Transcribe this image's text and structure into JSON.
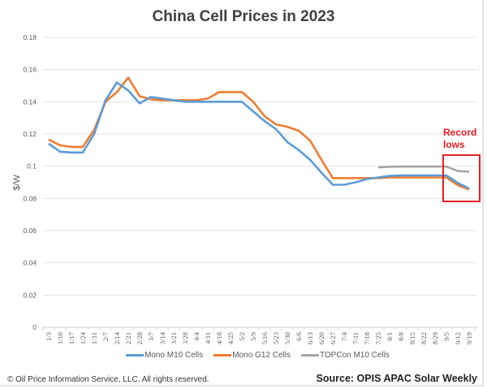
{
  "chart_data": {
    "type": "line",
    "title": "China Cell Prices in 2023",
    "xlabel": "",
    "ylabel": "$/W",
    "ylim": [
      0,
      0.18
    ],
    "yticks": [
      "0",
      "0.02",
      "0.04",
      "0.06",
      "0.08",
      "0.1",
      "0.12",
      "0.14",
      "0.16",
      "0.18"
    ],
    "ytick_values": [
      0,
      0.02,
      0.04,
      0.06,
      0.08,
      0.1,
      0.12,
      0.14,
      0.16,
      0.18
    ],
    "grid": true,
    "legend_position": "bottom",
    "categories": [
      "1/3",
      "1/10",
      "1/17",
      "1/24",
      "1/31",
      "2/7",
      "2/14",
      "2/21",
      "2/28",
      "3/7",
      "3/14",
      "3/21",
      "3/28",
      "4/4",
      "4/11",
      "4/18",
      "4/25",
      "5/2",
      "5/9",
      "5/16",
      "5/23",
      "5/30",
      "6/6",
      "6/13",
      "6/20",
      "6/27",
      "7/4",
      "7/11",
      "7/18",
      "7/25",
      "8/1",
      "8/8",
      "8/15",
      "8/22",
      "8/29",
      "9/5",
      "9/12",
      "9/19"
    ],
    "series": [
      {
        "name": "Mono M10 Cells",
        "color": "#5b9bd5",
        "values": [
          0.114,
          0.109,
          0.1085,
          0.1085,
          0.12,
          0.141,
          0.152,
          0.147,
          0.139,
          0.143,
          0.142,
          0.141,
          0.14,
          0.14,
          0.14,
          0.14,
          0.14,
          0.14,
          0.134,
          0.128,
          0.123,
          0.115,
          0.11,
          0.104,
          0.096,
          0.0885,
          0.0885,
          0.09,
          0.092,
          0.093,
          0.094,
          0.0943,
          0.0943,
          0.0943,
          0.0943,
          0.0943,
          0.0896,
          0.0862
        ]
      },
      {
        "name": "Mono G12 Cells",
        "color": "#ed7d31",
        "values": [
          0.1165,
          0.113,
          0.112,
          0.112,
          0.1225,
          0.14,
          0.146,
          0.155,
          0.1435,
          0.1415,
          0.141,
          0.141,
          0.141,
          0.141,
          0.142,
          0.146,
          0.146,
          0.146,
          0.14,
          0.131,
          0.126,
          0.1245,
          0.122,
          0.116,
          0.104,
          0.0926,
          0.0926,
          0.0926,
          0.0926,
          0.0926,
          0.093,
          0.093,
          0.093,
          0.093,
          0.093,
          0.093,
          0.0882,
          0.0855
        ]
      },
      {
        "name": "TOPCon M10 Cells",
        "color": "#a5a5a5",
        "values": [
          null,
          null,
          null,
          null,
          null,
          null,
          null,
          null,
          null,
          null,
          null,
          null,
          null,
          null,
          null,
          null,
          null,
          null,
          null,
          null,
          null,
          null,
          null,
          null,
          null,
          null,
          null,
          null,
          null,
          0.0993,
          0.0997,
          0.0998,
          0.0998,
          0.0998,
          0.0998,
          0.0998,
          0.097,
          0.0966
        ]
      }
    ],
    "annotations": [
      {
        "text": "Record lows",
        "color": "#ee1c25",
        "highlight_categories": [
          "9/5",
          "9/19"
        ]
      }
    ]
  },
  "annotation": {
    "line1": "Record",
    "line2": "lows"
  },
  "footer": {
    "copyright": "© Oil Price Information Service, LLC.  All rights reserved.",
    "source": "Source: OPIS APAC Solar Weekly"
  }
}
